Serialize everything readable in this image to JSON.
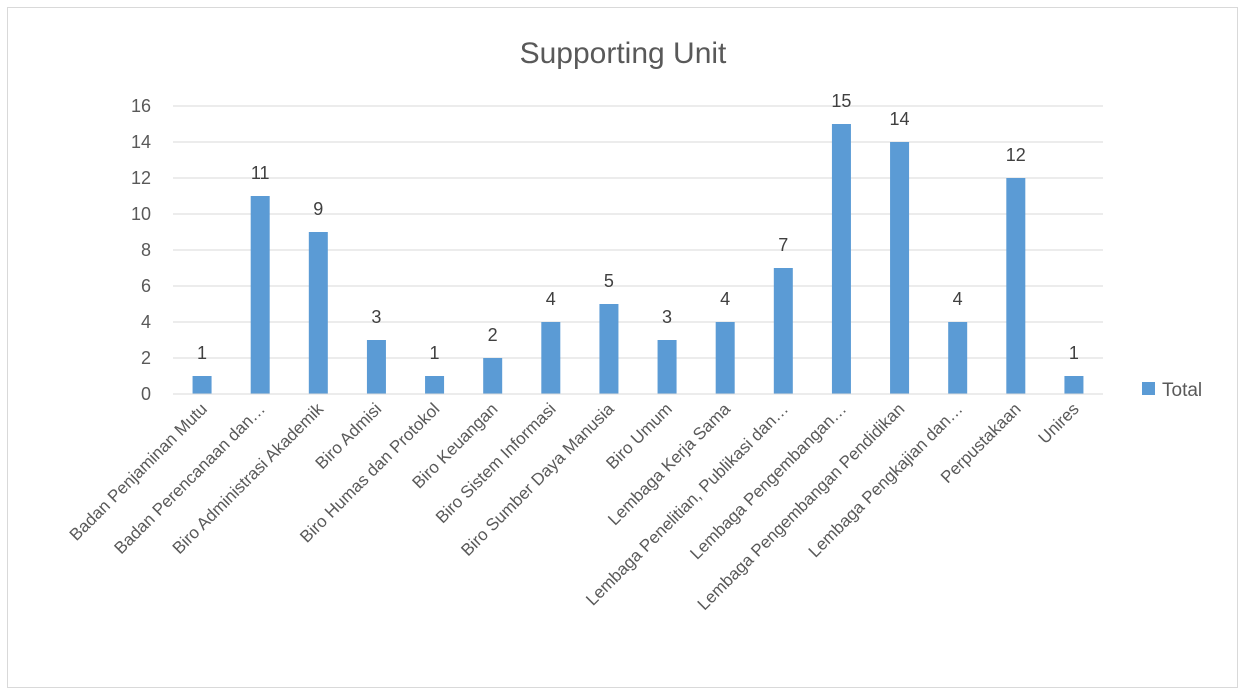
{
  "chart_data": {
    "type": "bar",
    "title": "Supporting Unit",
    "xlabel": "",
    "ylabel": "",
    "ylim": [
      0,
      16
    ],
    "yticks": [
      0,
      2,
      4,
      6,
      8,
      10,
      12,
      14,
      16
    ],
    "grid": true,
    "legend_position": "right",
    "categories": [
      "Badan Penjaminan Mutu",
      "Badan Perencanaan dan…",
      "Biro Administrasi Akademik",
      "Biro Admisi",
      "Biro Humas dan Protokol",
      "Biro Keuangan",
      "Biro Sistem Informasi",
      "Biro Sumber Daya Manusia",
      "Biro Umum",
      "Lembaga Kerja Sama",
      "Lembaga Penelitian, Publikasi dan…",
      "Lembaga Pengembangan…",
      "Lembaga Pengembangan Pendidikan",
      "Lembaga Pengkajian dan…",
      "Perpustakaan",
      "Unires"
    ],
    "series": [
      {
        "name": "Total",
        "color": "#5b9bd5",
        "values": [
          1,
          11,
          9,
          3,
          1,
          2,
          4,
          5,
          3,
          4,
          7,
          15,
          14,
          4,
          12,
          1
        ]
      }
    ]
  }
}
